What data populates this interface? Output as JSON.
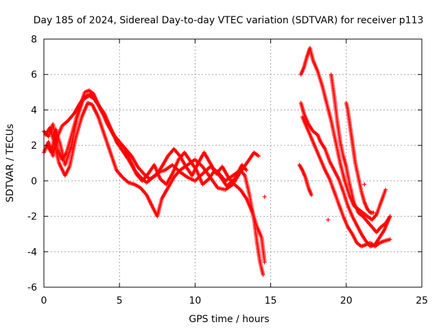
{
  "chart_data": {
    "type": "scatter",
    "title": "Day 185 of 2024, Sidereal Day-to-day VTEC variation (SDTVAR) for receiver p113",
    "xlabel": "GPS time / hours",
    "ylabel": "SDTVAR / TECUs",
    "xlim": [
      0,
      25
    ],
    "ylim": [
      -6,
      8
    ],
    "x_ticks": [
      0,
      5,
      10,
      15,
      20,
      25
    ],
    "y_ticks": [
      -6,
      -4,
      -2,
      0,
      2,
      4,
      6,
      8
    ],
    "grid": true,
    "marker": "+",
    "color": "#ff0000",
    "series": [
      {
        "name": "trace-1",
        "points": [
          [
            0.0,
            1.6
          ],
          [
            0.3,
            2.2
          ],
          [
            0.6,
            1.4
          ],
          [
            0.9,
            2.5
          ],
          [
            1.2,
            3.1
          ],
          [
            1.6,
            3.4
          ],
          [
            2.0,
            3.8
          ],
          [
            2.4,
            4.4
          ],
          [
            2.8,
            4.8
          ],
          [
            3.1,
            4.9
          ],
          [
            3.5,
            4.4
          ],
          [
            4.0,
            3.8
          ],
          [
            4.4,
            3.0
          ],
          [
            4.8,
            2.2
          ],
          [
            5.2,
            1.7
          ],
          [
            5.6,
            1.2
          ],
          [
            6.0,
            0.6
          ],
          [
            6.4,
            0.2
          ],
          [
            6.8,
            -0.1
          ],
          [
            7.2,
            0.2
          ],
          [
            7.6,
            0.5
          ],
          [
            8.0,
            0.6
          ],
          [
            8.5,
            0.9
          ],
          [
            9.0,
            0.5
          ],
          [
            9.5,
            0.2
          ],
          [
            10.0,
            0.0
          ],
          [
            10.5,
            0.4
          ],
          [
            11.0,
            0.8
          ],
          [
            11.5,
            0.5
          ],
          [
            12.0,
            0.0
          ],
          [
            12.5,
            0.3
          ],
          [
            13.0,
            0.6
          ],
          [
            13.3,
            0.3
          ],
          [
            13.6,
            -0.8
          ],
          [
            13.9,
            -2.2
          ],
          [
            14.1,
            -3.5
          ],
          [
            14.3,
            -4.6
          ],
          [
            14.5,
            -5.3
          ]
        ]
      },
      {
        "name": "trace-2",
        "points": [
          [
            0.1,
            2.6
          ],
          [
            0.4,
            3.0
          ],
          [
            0.7,
            2.1
          ],
          [
            1.0,
            1.0
          ],
          [
            1.4,
            0.3
          ],
          [
            1.7,
            0.8
          ],
          [
            2.1,
            2.4
          ],
          [
            2.5,
            3.6
          ],
          [
            2.9,
            4.4
          ],
          [
            3.2,
            4.3
          ],
          [
            3.6,
            3.6
          ],
          [
            4.0,
            2.6
          ],
          [
            4.4,
            1.6
          ],
          [
            4.8,
            0.6
          ],
          [
            5.2,
            0.2
          ],
          [
            5.6,
            -0.1
          ],
          [
            6.0,
            -0.2
          ],
          [
            6.4,
            -0.4
          ],
          [
            6.8,
            -0.8
          ],
          [
            7.2,
            -1.5
          ],
          [
            7.5,
            -2.0
          ],
          [
            7.8,
            -1.0
          ],
          [
            8.2,
            -0.4
          ],
          [
            8.6,
            0.2
          ],
          [
            9.0,
            0.6
          ],
          [
            9.5,
            0.9
          ],
          [
            10.0,
            1.2
          ],
          [
            10.5,
            0.8
          ],
          [
            11.0,
            0.2
          ],
          [
            11.5,
            -0.4
          ],
          [
            12.0,
            -0.5
          ],
          [
            12.5,
            -0.2
          ],
          [
            13.0,
            0.5
          ],
          [
            13.5,
            1.1
          ],
          [
            13.9,
            1.6
          ],
          [
            14.2,
            1.4
          ]
        ]
      },
      {
        "name": "trace-3",
        "points": [
          [
            0.2,
            2.0
          ],
          [
            0.5,
            1.6
          ],
          [
            0.8,
            2.9
          ],
          [
            1.1,
            2.0
          ],
          [
            1.4,
            0.9
          ],
          [
            1.8,
            1.9
          ],
          [
            2.2,
            3.6
          ],
          [
            2.6,
            4.6
          ],
          [
            3.0,
            4.8
          ],
          [
            3.4,
            4.6
          ],
          [
            3.8,
            4.0
          ],
          [
            4.2,
            3.2
          ],
          [
            4.6,
            2.6
          ],
          [
            5.0,
            2.2
          ],
          [
            5.4,
            1.8
          ],
          [
            5.8,
            1.4
          ],
          [
            6.2,
            0.8
          ],
          [
            6.6,
            0.4
          ],
          [
            7.0,
            0.1
          ],
          [
            7.4,
            0.3
          ],
          [
            7.8,
            0.8
          ],
          [
            8.2,
            1.4
          ],
          [
            8.6,
            1.8
          ],
          [
            9.0,
            1.4
          ],
          [
            9.4,
            0.8
          ],
          [
            9.8,
            0.3
          ],
          [
            10.2,
            1.0
          ],
          [
            10.6,
            1.6
          ],
          [
            11.0,
            1.0
          ],
          [
            11.4,
            0.4
          ],
          [
            11.8,
            0.8
          ],
          [
            12.2,
            0.2
          ],
          [
            12.6,
            -0.2
          ],
          [
            13.0,
            -0.5
          ],
          [
            13.4,
            -1.0
          ],
          [
            13.8,
            -1.8
          ],
          [
            14.1,
            -2.6
          ],
          [
            14.4,
            -3.2
          ],
          [
            14.6,
            -4.6
          ]
        ]
      },
      {
        "name": "trace-4",
        "points": [
          [
            0.0,
            2.8
          ],
          [
            0.3,
            2.5
          ],
          [
            0.6,
            3.2
          ],
          [
            0.9,
            1.8
          ],
          [
            1.2,
            1.2
          ],
          [
            1.5,
            1.6
          ],
          [
            1.9,
            2.8
          ],
          [
            2.3,
            4.0
          ],
          [
            2.7,
            5.0
          ],
          [
            3.0,
            5.1
          ],
          [
            3.3,
            4.9
          ],
          [
            3.7,
            4.1
          ],
          [
            4.1,
            3.5
          ],
          [
            4.5,
            2.8
          ],
          [
            4.9,
            2.2
          ],
          [
            5.3,
            1.9
          ],
          [
            5.7,
            1.2
          ],
          [
            6.1,
            0.4
          ],
          [
            6.5,
            0.0
          ],
          [
            6.9,
            0.4
          ],
          [
            7.3,
            0.9
          ],
          [
            7.7,
            0.1
          ],
          [
            8.1,
            -0.2
          ],
          [
            8.5,
            0.4
          ],
          [
            8.9,
            1.2
          ],
          [
            9.3,
            1.6
          ],
          [
            9.7,
            1.1
          ],
          [
            10.1,
            0.6
          ],
          [
            10.5,
            -0.2
          ],
          [
            10.9,
            0.1
          ],
          [
            11.3,
            0.6
          ],
          [
            11.7,
            0.2
          ],
          [
            12.1,
            -0.3
          ],
          [
            12.6,
            0.1
          ],
          [
            13.1,
            0.9
          ],
          [
            13.4,
            0.6
          ]
        ]
      },
      {
        "name": "trace-5",
        "points": [
          [
            17.0,
            6.0
          ],
          [
            17.2,
            6.4
          ],
          [
            17.4,
            7.0
          ],
          [
            17.6,
            7.5
          ],
          [
            17.8,
            6.8
          ],
          [
            18.1,
            6.2
          ],
          [
            18.4,
            5.4
          ],
          [
            18.7,
            4.4
          ],
          [
            19.0,
            3.4
          ],
          [
            19.3,
            2.2
          ],
          [
            19.6,
            1.0
          ],
          [
            19.9,
            0.0
          ],
          [
            20.2,
            -0.8
          ],
          [
            20.5,
            -1.4
          ],
          [
            20.8,
            -1.6
          ],
          [
            21.1,
            -1.8
          ],
          [
            21.4,
            -2.0
          ],
          [
            21.7,
            -2.2
          ],
          [
            22.0,
            -1.9
          ],
          [
            22.3,
            -1.2
          ],
          [
            22.6,
            -0.5
          ]
        ]
      },
      {
        "name": "trace-6",
        "points": [
          [
            17.0,
            4.4
          ],
          [
            17.2,
            3.8
          ],
          [
            17.5,
            3.2
          ],
          [
            17.8,
            2.8
          ],
          [
            18.1,
            2.6
          ],
          [
            18.3,
            2.2
          ],
          [
            18.6,
            1.8
          ],
          [
            18.9,
            1.1
          ],
          [
            19.2,
            0.6
          ],
          [
            19.5,
            0.1
          ],
          [
            19.8,
            -0.6
          ],
          [
            20.1,
            -1.4
          ],
          [
            20.4,
            -2.0
          ],
          [
            20.7,
            -2.5
          ],
          [
            21.0,
            -3.0
          ],
          [
            21.3,
            -3.4
          ],
          [
            21.6,
            -3.7
          ],
          [
            21.9,
            -3.6
          ],
          [
            22.2,
            -3.2
          ],
          [
            22.5,
            -2.8
          ],
          [
            22.9,
            -2.0
          ]
        ]
      },
      {
        "name": "trace-7",
        "points": [
          [
            17.1,
            3.6
          ],
          [
            17.4,
            3.0
          ],
          [
            17.7,
            2.4
          ],
          [
            18.0,
            1.8
          ],
          [
            18.3,
            1.2
          ],
          [
            18.6,
            0.6
          ],
          [
            18.9,
            0.1
          ],
          [
            19.2,
            -0.6
          ],
          [
            19.5,
            -1.3
          ],
          [
            19.8,
            -2.0
          ],
          [
            20.1,
            -2.6
          ],
          [
            20.4,
            -3.0
          ],
          [
            20.7,
            -3.5
          ],
          [
            21.0,
            -3.7
          ],
          [
            21.3,
            -3.6
          ],
          [
            21.6,
            -3.5
          ],
          [
            21.9,
            -3.7
          ],
          [
            22.2,
            -3.5
          ],
          [
            22.5,
            -3.4
          ],
          [
            22.9,
            -3.3
          ]
        ]
      },
      {
        "name": "trace-8",
        "points": [
          [
            19.0,
            6.0
          ],
          [
            19.2,
            4.8
          ],
          [
            19.4,
            3.4
          ],
          [
            19.6,
            2.2
          ],
          [
            19.8,
            1.4
          ],
          [
            20.0,
            0.8
          ],
          [
            20.2,
            -0.1
          ],
          [
            20.5,
            -1.2
          ],
          [
            20.8,
            -1.8
          ],
          [
            21.1,
            -2.0
          ],
          [
            21.4,
            -2.3
          ],
          [
            21.7,
            -2.6
          ],
          [
            22.0,
            -2.9
          ],
          [
            22.3,
            -2.6
          ],
          [
            22.6,
            -2.4
          ],
          [
            22.9,
            -2.0
          ]
        ]
      },
      {
        "name": "trace-9",
        "points": [
          [
            20.0,
            4.4
          ],
          [
            20.1,
            4.0
          ],
          [
            20.2,
            3.4
          ],
          [
            20.3,
            2.8
          ],
          [
            20.4,
            2.2
          ],
          [
            20.5,
            1.6
          ],
          [
            20.6,
            1.0
          ],
          [
            20.8,
            0.2
          ],
          [
            21.0,
            -0.6
          ],
          [
            21.2,
            -1.2
          ],
          [
            21.4,
            -1.6
          ],
          [
            21.6,
            -1.8
          ],
          [
            21.8,
            -1.8
          ]
        ]
      },
      {
        "name": "trace-10",
        "points": [
          [
            16.9,
            0.9
          ],
          [
            17.1,
            0.6
          ],
          [
            17.3,
            0.2
          ],
          [
            17.5,
            -0.4
          ],
          [
            17.7,
            -0.8
          ]
        ]
      },
      {
        "name": "isolated",
        "points": [
          [
            14.6,
            -0.9
          ],
          [
            18.8,
            -2.2
          ],
          [
            21.2,
            -0.2
          ]
        ]
      }
    ]
  }
}
